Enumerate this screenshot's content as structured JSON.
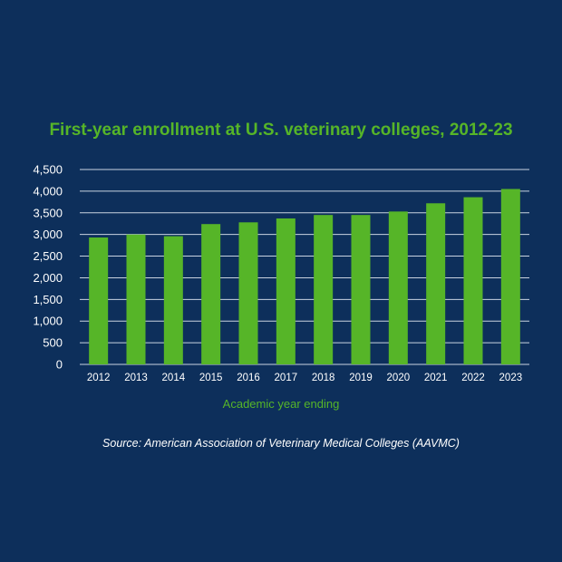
{
  "chart_data": {
    "type": "bar",
    "title": "First-year enrollment at U.S. veterinary colleges, 2012-23",
    "xlabel": "Academic year ending",
    "ylabel": "",
    "categories": [
      "2012",
      "2013",
      "2014",
      "2015",
      "2016",
      "2017",
      "2018",
      "2019",
      "2020",
      "2021",
      "2022",
      "2023"
    ],
    "values": [
      2930,
      3000,
      2960,
      3240,
      3280,
      3370,
      3450,
      3450,
      3530,
      3720,
      3860,
      4050
    ],
    "ylim": [
      0,
      4500
    ],
    "yticks": [
      "0",
      "500",
      "1,000",
      "1,500",
      "2,000",
      "2,500",
      "3,000",
      "3,500",
      "4,000",
      "4,500"
    ],
    "grid": true,
    "bar_color": "#56b528",
    "grid_color": "#c9d3e0"
  },
  "source": "Source: American Association of Veterinary Medical Colleges (AAVMC)",
  "colors": {
    "background": "#0d2f5b",
    "accent": "#56b528",
    "text": "#ffffff"
  }
}
